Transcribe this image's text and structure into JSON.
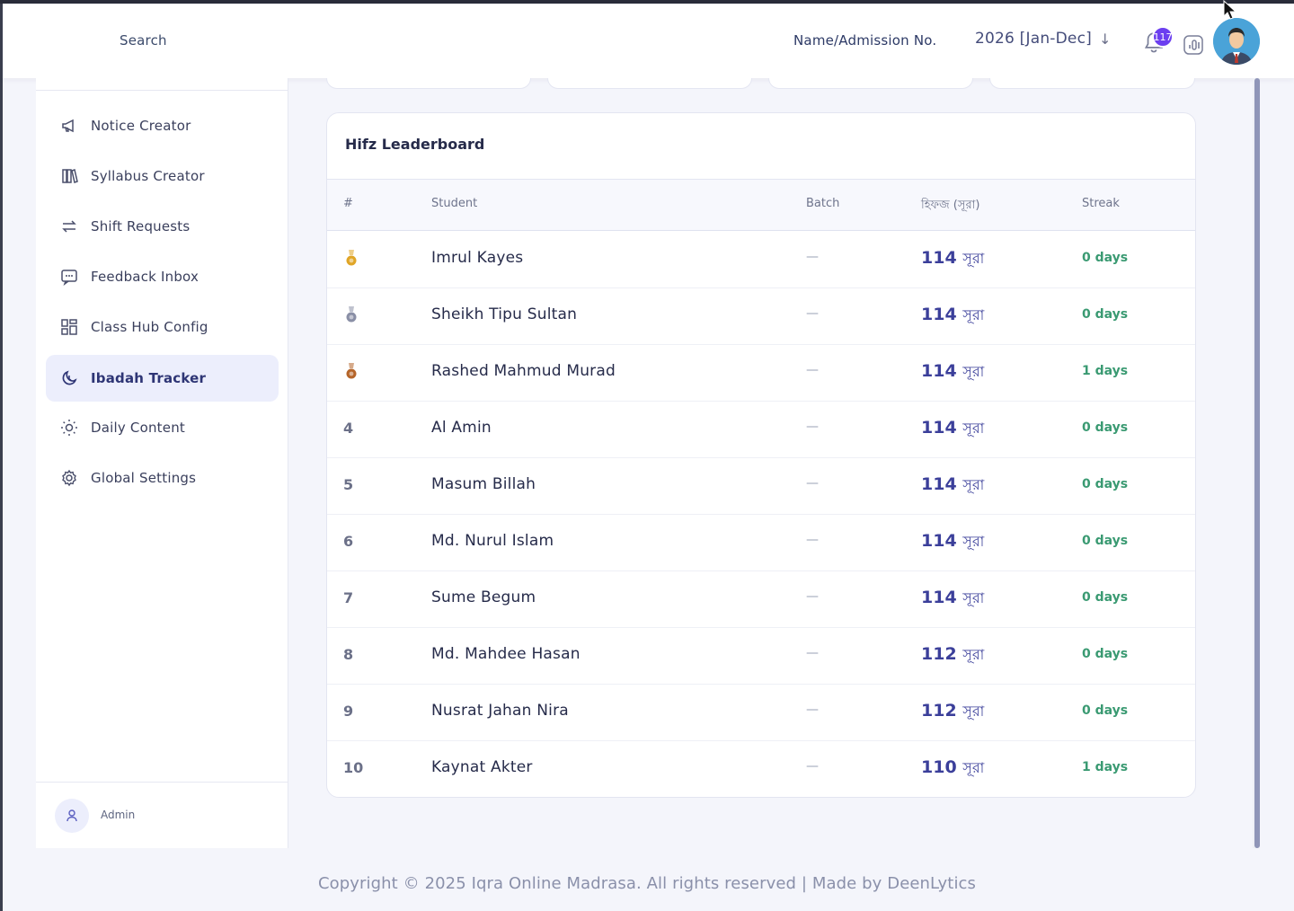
{
  "header": {
    "search_label": "Search",
    "name_admission_label": "Name/Admission No.",
    "session": "2026 [Jan-Dec]",
    "notification_count": "117"
  },
  "sidebar": {
    "items": [
      {
        "label": "Notice Creator",
        "icon": "megaphone-icon",
        "active": false
      },
      {
        "label": "Syllabus Creator",
        "icon": "books-icon",
        "active": false
      },
      {
        "label": "Shift Requests",
        "icon": "swap-arrows-icon",
        "active": false
      },
      {
        "label": "Feedback Inbox",
        "icon": "chat-bubble-icon",
        "active": false
      },
      {
        "label": "Class Hub Config",
        "icon": "grid-icon",
        "active": false
      },
      {
        "label": "Ibadah Tracker",
        "icon": "moon-icon",
        "active": true
      },
      {
        "label": "Daily Content",
        "icon": "sun-icon",
        "active": false
      },
      {
        "label": "Global Settings",
        "icon": "gear-icon",
        "active": false
      }
    ],
    "user_label": "Admin"
  },
  "leaderboard": {
    "title": "Hifz Leaderboard",
    "columns": [
      "#",
      "Student",
      "Batch",
      "হিফজ (সূরা)",
      "Streak"
    ],
    "rows": [
      {
        "rank": "",
        "medal": "gold",
        "name": "Imrul Kayes",
        "batch": "—",
        "hifz": "114",
        "unit": "সূরা",
        "streak": "0 days"
      },
      {
        "rank": "",
        "medal": "silver",
        "name": "Sheikh Tipu Sultan",
        "batch": "—",
        "hifz": "114",
        "unit": "সূরা",
        "streak": "0 days"
      },
      {
        "rank": "",
        "medal": "bronze",
        "name": "Rashed Mahmud Murad",
        "batch": "—",
        "hifz": "114",
        "unit": "সূরা",
        "streak": "1 days"
      },
      {
        "rank": "4",
        "medal": "",
        "name": "Al Amin",
        "batch": "—",
        "hifz": "114",
        "unit": "সূরা",
        "streak": "0 days"
      },
      {
        "rank": "5",
        "medal": "",
        "name": "Masum Billah",
        "batch": "—",
        "hifz": "114",
        "unit": "সূরা",
        "streak": "0 days"
      },
      {
        "rank": "6",
        "medal": "",
        "name": "Md. Nurul Islam",
        "batch": "—",
        "hifz": "114",
        "unit": "সূরা",
        "streak": "0 days"
      },
      {
        "rank": "7",
        "medal": "",
        "name": "Sume Begum",
        "batch": "—",
        "hifz": "114",
        "unit": "সূরা",
        "streak": "0 days"
      },
      {
        "rank": "8",
        "medal": "",
        "name": "Md. Mahdee Hasan",
        "batch": "—",
        "hifz": "112",
        "unit": "সূরা",
        "streak": "0 days"
      },
      {
        "rank": "9",
        "medal": "",
        "name": "Nusrat Jahan Nira",
        "batch": "—",
        "hifz": "112",
        "unit": "সূরা",
        "streak": "0 days"
      },
      {
        "rank": "10",
        "medal": "",
        "name": "Kaynat Akter",
        "batch": "—",
        "hifz": "110",
        "unit": "সূরা",
        "streak": "1 days"
      }
    ]
  },
  "footer": {
    "text": "Copyright © 2025 Iqra Online Madrasa. All rights reserved | Made by DeenLytics"
  },
  "colors": {
    "accent": "#6c3ff0",
    "active_bg": "#eceefc",
    "streak": "#3a9a72",
    "hifz": "#3b3f9a"
  }
}
